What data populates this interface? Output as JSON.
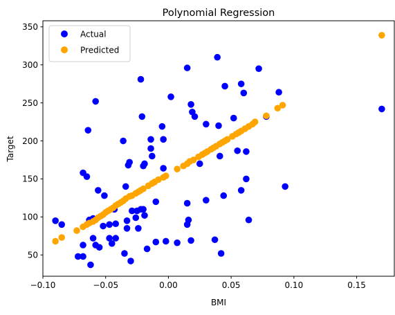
{
  "chart_data": {
    "type": "scatter",
    "title": "Polynomial Regression",
    "xlabel": "BMI",
    "ylabel": "Target",
    "xlim": [
      -0.1,
      0.18
    ],
    "ylim": [
      22,
      358
    ],
    "xticks": [
      -0.1,
      -0.05,
      0.0,
      0.05,
      0.1,
      0.15
    ],
    "xtick_labels": [
      "−0.10",
      "−0.05",
      "0.00",
      "0.05",
      "0.10",
      "0.15"
    ],
    "yticks": [
      50,
      100,
      150,
      200,
      250,
      300,
      350
    ],
    "ytick_labels": [
      "50",
      "100",
      "150",
      "200",
      "250",
      "300",
      "350"
    ],
    "grid": false,
    "legend": {
      "position": "top-left"
    },
    "series": [
      {
        "name": "Actual",
        "color": "#0000ff",
        "points": [
          [
            -0.09,
            95
          ],
          [
            -0.085,
            90
          ],
          [
            -0.072,
            48
          ],
          [
            -0.068,
            48
          ],
          [
            -0.068,
            63
          ],
          [
            -0.068,
            158
          ],
          [
            -0.065,
            153
          ],
          [
            -0.064,
            214
          ],
          [
            -0.063,
            96
          ],
          [
            -0.062,
            37
          ],
          [
            -0.06,
            98
          ],
          [
            -0.06,
            72
          ],
          [
            -0.058,
            252
          ],
          [
            -0.058,
            63
          ],
          [
            -0.056,
            135
          ],
          [
            -0.055,
            60
          ],
          [
            -0.052,
            88
          ],
          [
            -0.051,
            128
          ],
          [
            -0.047,
            90
          ],
          [
            -0.047,
            72
          ],
          [
            -0.045,
            65
          ],
          [
            -0.043,
            110
          ],
          [
            -0.042,
            72
          ],
          [
            -0.042,
            91
          ],
          [
            -0.036,
            200
          ],
          [
            -0.035,
            52
          ],
          [
            -0.034,
            140
          ],
          [
            -0.033,
            95
          ],
          [
            -0.033,
            85
          ],
          [
            -0.032,
            168
          ],
          [
            -0.031,
            172
          ],
          [
            -0.03,
            42
          ],
          [
            -0.029,
            108
          ],
          [
            -0.026,
            99
          ],
          [
            -0.025,
            108
          ],
          [
            -0.024,
            85
          ],
          [
            -0.022,
            281
          ],
          [
            -0.022,
            110
          ],
          [
            -0.021,
            232
          ],
          [
            -0.02,
            110
          ],
          [
            -0.02,
            167
          ],
          [
            -0.019,
            170
          ],
          [
            -0.019,
            102
          ],
          [
            -0.017,
            58
          ],
          [
            -0.014,
            190
          ],
          [
            -0.014,
            202
          ],
          [
            -0.013,
            180
          ],
          [
            -0.01,
            120
          ],
          [
            -0.01,
            67
          ],
          [
            -0.005,
            219
          ],
          [
            -0.004,
            164
          ],
          [
            -0.004,
            202
          ],
          [
            -0.002,
            68
          ],
          [
            0.002,
            258
          ],
          [
            0.007,
            66
          ],
          [
            0.015,
            296
          ],
          [
            0.015,
            118
          ],
          [
            0.016,
            96
          ],
          [
            0.015,
            90
          ],
          [
            0.018,
            248
          ],
          [
            0.018,
            69
          ],
          [
            0.019,
            238
          ],
          [
            0.021,
            232
          ],
          [
            0.025,
            170
          ],
          [
            0.03,
            222
          ],
          [
            0.03,
            122
          ],
          [
            0.037,
            70
          ],
          [
            0.039,
            310
          ],
          [
            0.04,
            220
          ],
          [
            0.041,
            180
          ],
          [
            0.042,
            52
          ],
          [
            0.044,
            128
          ],
          [
            0.045,
            272
          ],
          [
            0.052,
            230
          ],
          [
            0.055,
            187
          ],
          [
            0.058,
            135
          ],
          [
            0.058,
            275
          ],
          [
            0.06,
            263
          ],
          [
            0.062,
            150
          ],
          [
            0.062,
            186
          ],
          [
            0.064,
            96
          ],
          [
            0.072,
            295
          ],
          [
            0.078,
            232
          ],
          [
            0.088,
            264
          ],
          [
            0.093,
            140
          ],
          [
            0.17,
            242
          ]
        ]
      },
      {
        "name": "Predicted",
        "color": "#ffa500",
        "points": [
          [
            -0.09,
            68
          ],
          [
            -0.085,
            73
          ],
          [
            -0.073,
            82
          ],
          [
            -0.068,
            87
          ],
          [
            -0.065,
            90
          ],
          [
            -0.063,
            92
          ],
          [
            -0.06,
            94
          ],
          [
            -0.058,
            96
          ],
          [
            -0.056,
            99
          ],
          [
            -0.054,
            101
          ],
          [
            -0.052,
            103
          ],
          [
            -0.05,
            106
          ],
          [
            -0.048,
            108
          ],
          [
            -0.046,
            110
          ],
          [
            -0.044,
            112
          ],
          [
            -0.042,
            115
          ],
          [
            -0.04,
            117
          ],
          [
            -0.038,
            119
          ],
          [
            -0.036,
            121
          ],
          [
            -0.034,
            124
          ],
          [
            -0.031,
            127
          ],
          [
            -0.029,
            128
          ],
          [
            -0.026,
            131
          ],
          [
            -0.024,
            133
          ],
          [
            -0.022,
            135
          ],
          [
            -0.02,
            137
          ],
          [
            -0.016,
            141
          ],
          [
            -0.013,
            144
          ],
          [
            -0.011,
            146
          ],
          [
            -0.008,
            149
          ],
          [
            -0.004,
            152
          ],
          [
            -0.002,
            154
          ],
          [
            0.007,
            163
          ],
          [
            0.012,
            167
          ],
          [
            0.015,
            170
          ],
          [
            0.017,
            173
          ],
          [
            0.02,
            175
          ],
          [
            0.024,
            179
          ],
          [
            0.027,
            182
          ],
          [
            0.029,
            184
          ],
          [
            0.031,
            186
          ],
          [
            0.034,
            189
          ],
          [
            0.036,
            191
          ],
          [
            0.038,
            193
          ],
          [
            0.041,
            196
          ],
          [
            0.043,
            198
          ],
          [
            0.045,
            200
          ],
          [
            0.047,
            202
          ],
          [
            0.051,
            206
          ],
          [
            0.054,
            209
          ],
          [
            0.056,
            211
          ],
          [
            0.058,
            213
          ],
          [
            0.061,
            216
          ],
          [
            0.064,
            219
          ],
          [
            0.067,
            222
          ],
          [
            0.069,
            225
          ],
          [
            0.078,
            233
          ],
          [
            0.087,
            243
          ],
          [
            0.091,
            247
          ],
          [
            0.17,
            339
          ]
        ]
      }
    ]
  }
}
